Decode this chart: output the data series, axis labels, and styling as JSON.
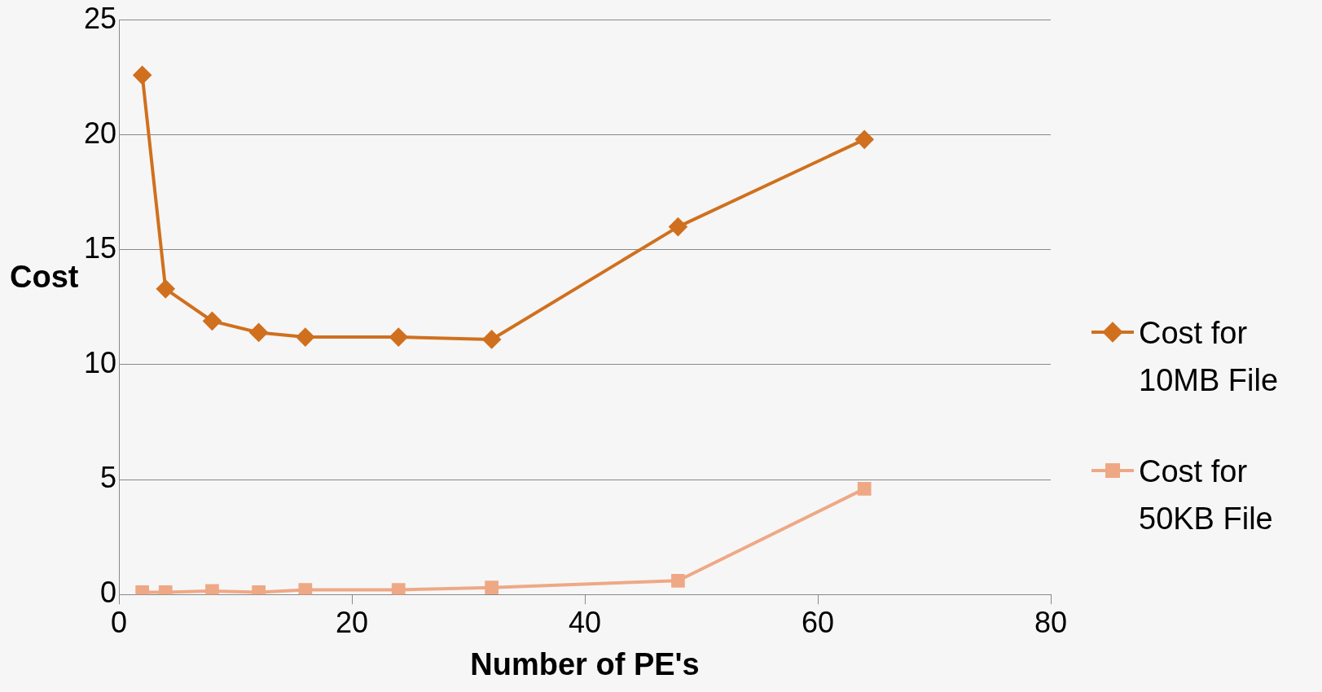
{
  "chart_data": {
    "type": "line",
    "xlabel": "Number of PE's",
    "ylabel": "Cost",
    "xlim": [
      0,
      80
    ],
    "xticks": [
      0,
      20,
      40,
      60,
      80
    ],
    "ylim": [
      0,
      25
    ],
    "yticks": [
      0,
      5,
      10,
      15,
      20,
      25
    ],
    "grid": "y",
    "legend": "right",
    "line_style": "solid",
    "series": [
      {
        "name": "Cost for 10MB File",
        "color": "#d0701e",
        "marker": "diamond",
        "x": [
          2,
          4,
          8,
          12,
          16,
          24,
          32,
          48,
          64
        ],
        "values": [
          22.6,
          13.3,
          11.9,
          11.4,
          11.2,
          11.2,
          11.1,
          16.0,
          19.8
        ]
      },
      {
        "name": "Cost for 50KB File",
        "color": "#efa885",
        "marker": "square",
        "x": [
          2,
          4,
          8,
          12,
          16,
          24,
          32,
          48,
          64
        ],
        "values": [
          0.1,
          0.1,
          0.15,
          0.1,
          0.2,
          0.2,
          0.3,
          0.6,
          4.6
        ]
      }
    ]
  }
}
